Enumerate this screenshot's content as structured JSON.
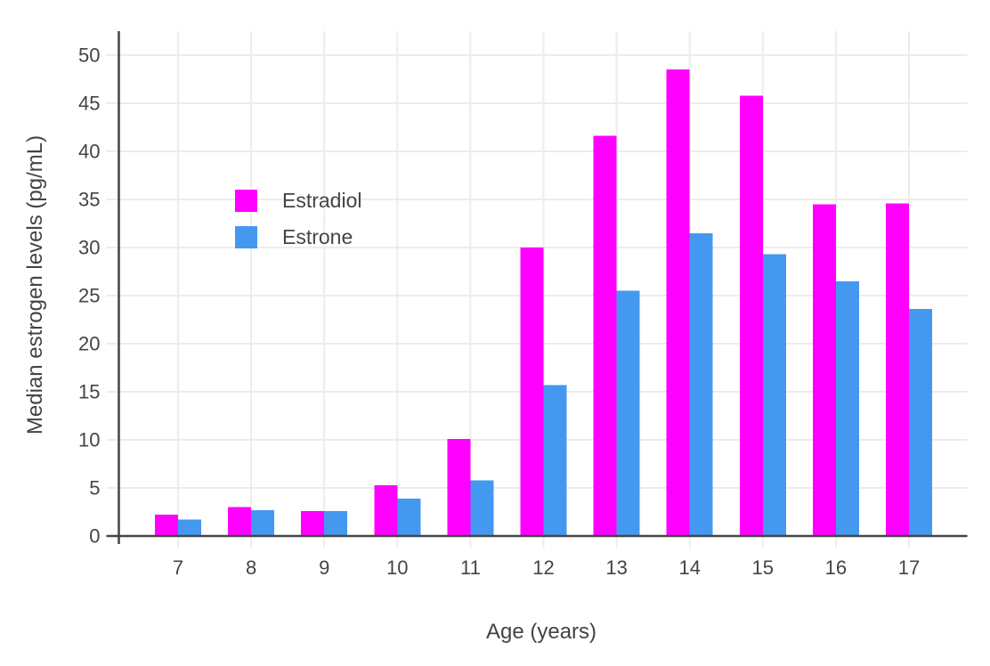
{
  "chart_data": {
    "type": "bar",
    "title": "",
    "xlabel": "Age (years)",
    "ylabel": "Median estrogen levels (pg/mL)",
    "categories": [
      "7",
      "8",
      "9",
      "10",
      "11",
      "12",
      "13",
      "14",
      "15",
      "16",
      "17"
    ],
    "series": [
      {
        "name": "Estradiol",
        "color": "#ff00ff",
        "values": [
          2.2,
          3.0,
          2.6,
          5.3,
          10.1,
          30.0,
          41.6,
          48.5,
          45.8,
          34.5,
          34.6
        ]
      },
      {
        "name": "Estrone",
        "color": "#4498f0",
        "values": [
          1.7,
          2.7,
          2.6,
          3.9,
          5.8,
          15.7,
          25.5,
          31.5,
          29.3,
          26.5,
          23.6
        ]
      }
    ],
    "ylim": [
      0,
      52.5
    ],
    "yticks": [
      0,
      5,
      10,
      15,
      20,
      25,
      30,
      35,
      40,
      45,
      50
    ],
    "grid": true,
    "legend_position": "inside-top-left",
    "colors": {
      "axis": "#444444",
      "tick_label": "#444444",
      "grid": "#ececec",
      "background": "#ffffff"
    }
  }
}
